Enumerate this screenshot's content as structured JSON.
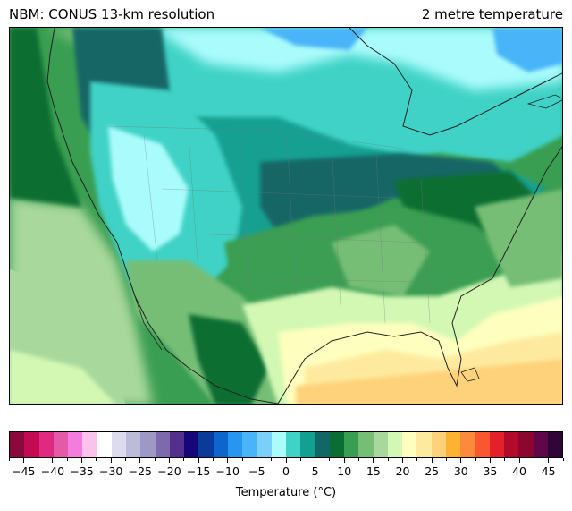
{
  "header": {
    "title_left": "NBM: CONUS 13-km resolution",
    "title_right": "2 metre temperature"
  },
  "colorbar": {
    "label": "Temperature (°C)",
    "tick_labels": [
      "−45",
      "−40",
      "−35",
      "−30",
      "−25",
      "−20",
      "−15",
      "−10",
      "−5",
      "0",
      "5",
      "10",
      "15",
      "20",
      "25",
      "30",
      "35",
      "40",
      "45"
    ],
    "range": [
      -47.5,
      47.5
    ],
    "step": 2.5,
    "colors": [
      "#8b0a3c",
      "#c40a52",
      "#e02a82",
      "#e55aa7",
      "#f37ddc",
      "#fbc2eb",
      "#ffffff",
      "#dcdcee",
      "#bcbcda",
      "#9e98c6",
      "#7c6aac",
      "#54308e",
      "#16067a",
      "#0a3a9a",
      "#0c66cc",
      "#2696f0",
      "#4ab4f8",
      "#7ad0fa",
      "#aafcfc",
      "#40d2c6",
      "#12a092",
      "#126666",
      "#0a6e32",
      "#3a9e52",
      "#76be76",
      "#a8d89c",
      "#d2f8b4",
      "#fefebe",
      "#feea9e",
      "#fed27a",
      "#feb232",
      "#fc8a3a",
      "#fa5630",
      "#e4202a",
      "#b40a2a",
      "#8c0630",
      "#60064a",
      "#300638"
    ]
  },
  "map": {
    "projection": "Lambert Conformal",
    "region": "CONUS"
  }
}
